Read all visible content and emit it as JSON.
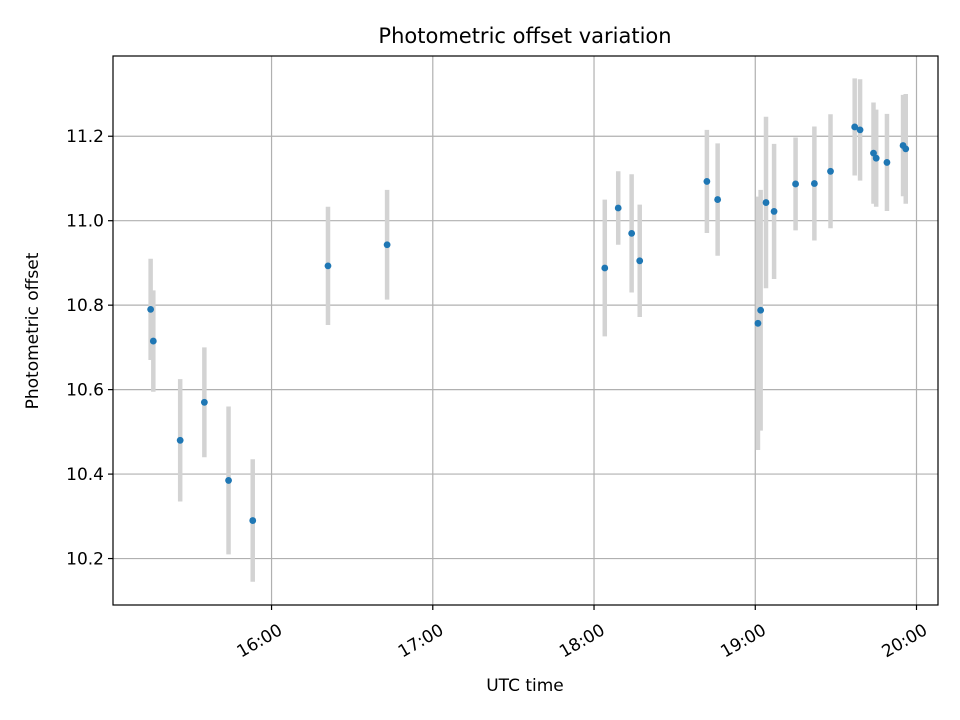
{
  "chart_data": {
    "type": "scatter",
    "title": "Photometric offset variation",
    "xlabel": "UTC time",
    "ylabel": "Photometric offset",
    "x_ticks": [
      "16:00",
      "17:00",
      "18:00",
      "19:00",
      "20:00"
    ],
    "y_ticks": [
      10.2,
      10.4,
      10.6,
      10.8,
      11.0,
      11.2
    ],
    "xlim": [
      "15:01",
      "20:08"
    ],
    "ylim": [
      10.09,
      11.39
    ],
    "grid": true,
    "point_color": "#1f77b4",
    "errorbar_color": "#d3d3d3",
    "points": [
      {
        "time": "15:15",
        "y": 10.79,
        "err": 0.12
      },
      {
        "time": "15:16",
        "y": 10.715,
        "err": 0.12
      },
      {
        "time": "15:26",
        "y": 10.48,
        "err": 0.145
      },
      {
        "time": "15:35",
        "y": 10.57,
        "err": 0.13
      },
      {
        "time": "15:44",
        "y": 10.385,
        "err": 0.175
      },
      {
        "time": "15:53",
        "y": 10.29,
        "err": 0.145
      },
      {
        "time": "16:21",
        "y": 10.893,
        "err": 0.14
      },
      {
        "time": "16:43",
        "y": 10.943,
        "err": 0.13
      },
      {
        "time": "18:04",
        "y": 10.888,
        "err": 0.162
      },
      {
        "time": "18:09",
        "y": 11.03,
        "err": 0.087
      },
      {
        "time": "18:14",
        "y": 10.97,
        "err": 0.14
      },
      {
        "time": "18:17",
        "y": 10.905,
        "err": 0.133
      },
      {
        "time": "18:42",
        "y": 11.093,
        "err": 0.122
      },
      {
        "time": "18:46",
        "y": 11.05,
        "err": 0.133
      },
      {
        "time": "19:01",
        "y": 10.757,
        "err": 0.3
      },
      {
        "time": "19:02",
        "y": 10.788,
        "err": 0.285
      },
      {
        "time": "19:04",
        "y": 11.043,
        "err": 0.203
      },
      {
        "time": "19:07",
        "y": 11.022,
        "err": 0.16
      },
      {
        "time": "19:15",
        "y": 11.087,
        "err": 0.11
      },
      {
        "time": "19:22",
        "y": 11.088,
        "err": 0.135
      },
      {
        "time": "19:28",
        "y": 11.117,
        "err": 0.135
      },
      {
        "time": "19:37",
        "y": 11.222,
        "err": 0.115
      },
      {
        "time": "19:39",
        "y": 11.215,
        "err": 0.12
      },
      {
        "time": "19:44",
        "y": 11.16,
        "err": 0.12
      },
      {
        "time": "19:45",
        "y": 11.148,
        "err": 0.115
      },
      {
        "time": "19:49",
        "y": 11.138,
        "err": 0.115
      },
      {
        "time": "19:55",
        "y": 11.178,
        "err": 0.12
      },
      {
        "time": "19:56",
        "y": 11.17,
        "err": 0.13
      }
    ]
  }
}
